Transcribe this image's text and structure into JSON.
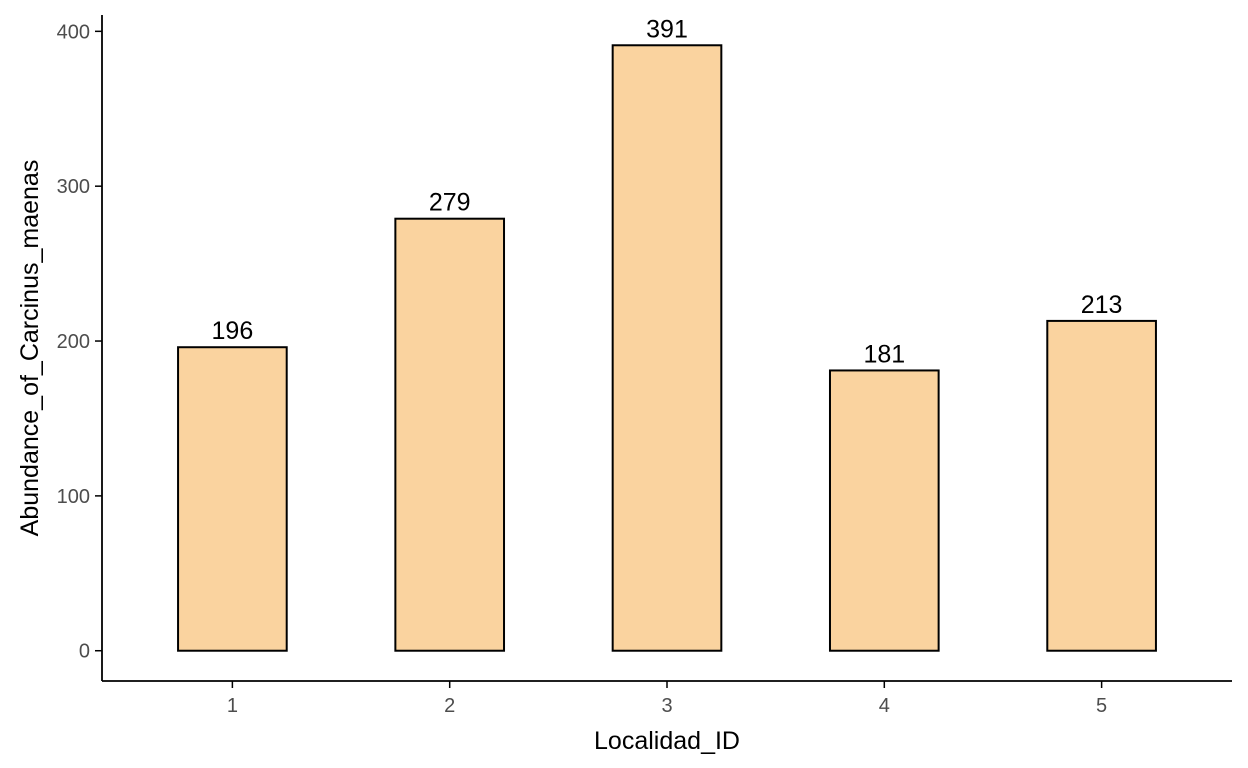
{
  "chart_data": {
    "type": "bar",
    "title": "",
    "xlabel": "Localidad_ID",
    "ylabel": "Abundance_of_Carcinus_maenas",
    "categories": [
      "1",
      "2",
      "3",
      "4",
      "5"
    ],
    "values": [
      196,
      279,
      391,
      181,
      213
    ],
    "data_labels": [
      "196",
      "279",
      "391",
      "181",
      "213"
    ],
    "y_ticks": [
      0,
      100,
      200,
      300,
      400
    ],
    "y_tick_labels": [
      "0",
      "100",
      "200",
      "300",
      "400"
    ],
    "ylim": [
      -19.55,
      410.55
    ],
    "grid": false,
    "legend": "none",
    "colors": {
      "bar_fill": "#FAD39F",
      "bar_stroke": "#000000",
      "axis": "#000000",
      "tick_label": "#4D4D4D"
    }
  }
}
